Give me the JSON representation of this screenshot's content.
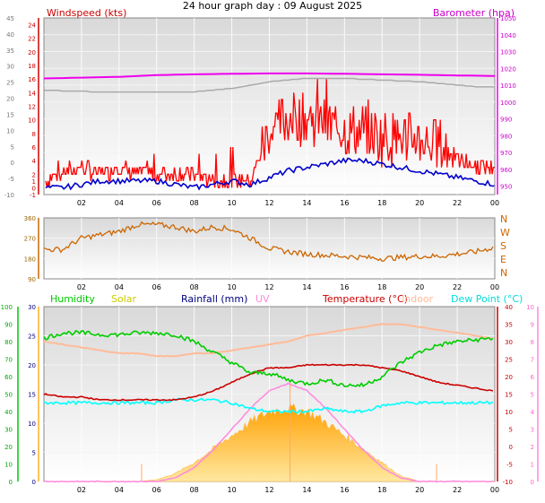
{
  "title": "24 hour graph day : 09 August 2025",
  "colors": {
    "windspeed": "#ff0000",
    "wind_avg": "#0000cc",
    "barometer": "#ee00ee",
    "bar_grey": "#aaaaaa",
    "direction": "#cc6600",
    "humidity": "#00cc00",
    "solar": "#ffb020",
    "rainfall": "#000080",
    "uv": "#ff88dd",
    "temperature": "#cc0000",
    "indoor": "#ffbb99",
    "dewpoint": "#00ffff",
    "plot_bg_top": "#e8e8e8",
    "plot_bg_bottom": "#ffffff"
  },
  "chart_data": [
    {
      "type": "line",
      "panel": "wind_barometer",
      "x_ticks": [
        "02",
        "04",
        "06",
        "08",
        "10",
        "12",
        "14",
        "16",
        "18",
        "20",
        "22",
        "00"
      ],
      "left_outer_axis": {
        "ticks": [
          "-10",
          "-5",
          "0",
          "5",
          "10",
          "15",
          "20",
          "25",
          "30",
          "35",
          "40",
          "45"
        ]
      },
      "left_axis": {
        "label": "Windspeed (kts)",
        "ticks": [
          "-1",
          "0",
          "1",
          "2",
          "4",
          "6",
          "8",
          "10",
          "12",
          "14",
          "16",
          "18",
          "20",
          "22",
          "24"
        ],
        "range": [
          -1,
          25
        ]
      },
      "right_axis": {
        "label": "Barometer (hpa)",
        "ticks": [
          "950",
          "960",
          "970",
          "980",
          "990",
          "1000",
          "1010",
          "1020",
          "1030",
          "1040",
          "1050"
        ],
        "range": [
          945,
          1050
        ]
      },
      "series": [
        {
          "name": "Windspeed (kts)",
          "key": "gust",
          "x": [
            0,
            1,
            2,
            3,
            4,
            5,
            6,
            7,
            8,
            9,
            10,
            11,
            12,
            13,
            14,
            15,
            16,
            17,
            18,
            19,
            20,
            21,
            22,
            23,
            24
          ],
          "y": [
            1,
            2,
            3,
            2,
            3,
            2,
            2,
            2,
            2,
            1,
            1,
            1,
            8,
            10,
            10,
            9,
            8,
            8,
            7,
            7,
            7,
            6,
            4,
            3,
            3
          ]
        },
        {
          "name": "avg",
          "key": "avg",
          "x": [
            0,
            1,
            2,
            3,
            4,
            5,
            6,
            7,
            8,
            9,
            10,
            11,
            12,
            13,
            14,
            15,
            16,
            17,
            18,
            19,
            20,
            21,
            22,
            23,
            24
          ],
          "y": [
            0,
            0,
            0.5,
            1,
            1,
            1,
            1,
            0.5,
            0,
            0.5,
            1,
            0.5,
            1.5,
            2.5,
            3,
            3.5,
            4,
            4,
            3.5,
            3,
            2.5,
            2,
            1.5,
            1,
            0.5
          ]
        },
        {
          "name": "Barometer (hpa)",
          "key": "baro",
          "x": [
            0,
            2,
            4,
            6,
            8,
            10,
            12,
            14,
            16,
            18,
            20,
            22,
            24
          ],
          "y": [
            1014,
            1014.5,
            1015,
            1016,
            1016.5,
            1016.8,
            1017,
            1017,
            1016.8,
            1016.5,
            1016.2,
            1015.8,
            1015.5
          ]
        },
        {
          "name": "pressure trend",
          "key": "baro_grey",
          "x": [
            0,
            3,
            6,
            8,
            9,
            10,
            11,
            12,
            13,
            14,
            16,
            18,
            20,
            21,
            22,
            23,
            24
          ],
          "y": [
            1007,
            1006,
            1006,
            1006,
            1007,
            1008,
            1010,
            1012,
            1013,
            1014,
            1014,
            1013,
            1012,
            1011,
            1010,
            1009,
            1009
          ]
        }
      ]
    },
    {
      "type": "line",
      "panel": "wind_direction",
      "x_ticks": [
        "02",
        "04",
        "06",
        "08",
        "10",
        "12",
        "14",
        "16",
        "18",
        "20",
        "22",
        "00"
      ],
      "left_axis": {
        "ticks": [
          "90",
          "180",
          "270",
          "360"
        ],
        "range": [
          90,
          360
        ]
      },
      "right_axis": {
        "ticks": [
          "N",
          "W",
          "S",
          "E",
          "N"
        ]
      },
      "series": [
        {
          "name": "Direction",
          "x": [
            0,
            1,
            2,
            3,
            4,
            5,
            6,
            7,
            8,
            9,
            10,
            11,
            12,
            13,
            14,
            15,
            16,
            17,
            18,
            19,
            20,
            21,
            22,
            23,
            24
          ],
          "y": [
            220,
            220,
            270,
            285,
            300,
            330,
            330,
            320,
            300,
            320,
            310,
            270,
            225,
            210,
            200,
            195,
            190,
            185,
            180,
            185,
            190,
            190,
            200,
            210,
            230
          ]
        }
      ]
    },
    {
      "type": "line",
      "panel": "weather",
      "x_ticks": [
        "02",
        "04",
        "06",
        "08",
        "10",
        "12",
        "14",
        "16",
        "18",
        "20",
        "22",
        "00"
      ],
      "legend": [
        "Humidity",
        "Solar",
        "Rainfall (mm)",
        "UV",
        "Temperature (°C)",
        "Indoor",
        "Dew Point (°C)"
      ],
      "humidity_axis": {
        "ticks": [
          "0",
          "10",
          "20",
          "30",
          "40",
          "50",
          "60",
          "70",
          "80",
          "90",
          "100"
        ],
        "range": [
          0,
          100
        ]
      },
      "left_axis": {
        "ticks": [
          "0",
          "5",
          "10",
          "15",
          "20",
          "25",
          "30"
        ],
        "range": [
          0,
          30
        ]
      },
      "right_axis": {
        "ticks": [
          "-10",
          "-5",
          "0",
          "5",
          "10",
          "15",
          "20",
          "25",
          "30",
          "35",
          "40"
        ],
        "range": [
          -10,
          40
        ]
      },
      "uv_axis": {
        "ticks": [
          "0",
          "1",
          "2",
          "3",
          "4",
          "5",
          "6",
          "7",
          "8",
          "9",
          "10"
        ],
        "range": [
          0,
          10
        ]
      },
      "series": [
        {
          "name": "Humidity",
          "x": [
            0,
            1,
            2,
            3,
            4,
            5,
            6,
            7,
            8,
            9,
            10,
            11,
            12,
            13,
            14,
            15,
            16,
            17,
            18,
            19,
            20,
            21,
            22,
            23,
            24
          ],
          "y": [
            82,
            85,
            85,
            84,
            84,
            85,
            85,
            84,
            80,
            74,
            68,
            62,
            62,
            58,
            56,
            58,
            55,
            55,
            60,
            68,
            74,
            78,
            80,
            81,
            82
          ]
        },
        {
          "name": "Temperature (°C)",
          "x": [
            0,
            1,
            2,
            3,
            4,
            5,
            6,
            7,
            8,
            9,
            10,
            11,
            12,
            13,
            14,
            15,
            16,
            17,
            18,
            19,
            20,
            21,
            22,
            23,
            24
          ],
          "y": [
            15,
            14.5,
            14.5,
            14,
            14,
            14,
            14,
            14,
            14.5,
            15.5,
            17,
            18.5,
            19.5,
            19.5,
            20,
            20,
            20,
            20,
            19.5,
            19,
            18,
            17,
            16.5,
            16,
            15.5
          ]
        },
        {
          "name": "Indoor",
          "x": [
            0,
            1,
            2,
            3,
            4,
            5,
            6,
            7,
            8,
            9,
            10,
            11,
            12,
            13,
            14,
            15,
            16,
            17,
            18,
            19,
            20,
            21,
            22,
            23,
            24
          ],
          "y": [
            24,
            23.5,
            23,
            22.5,
            22,
            22,
            21.5,
            21.5,
            22,
            22,
            22.5,
            23,
            23.5,
            24,
            25,
            25.5,
            26,
            26.5,
            27,
            27,
            26.5,
            26,
            25.5,
            25,
            24.5
          ]
        },
        {
          "name": "Dew Point (°C)",
          "x": [
            0,
            1,
            2,
            3,
            4,
            5,
            6,
            7,
            8,
            9,
            10,
            11,
            12,
            13,
            14,
            15,
            16,
            17,
            18,
            19,
            20,
            21,
            22,
            23,
            24
          ],
          "y": [
            13.5,
            13.5,
            13.5,
            13.5,
            13.5,
            13.5,
            13.5,
            14,
            14,
            14,
            13.5,
            12.5,
            12,
            12,
            12,
            12.5,
            12,
            12,
            13,
            13.5,
            13.5,
            13.5,
            13.5,
            13.5,
            13.5
          ]
        },
        {
          "name": "UV",
          "x": [
            0,
            6,
            7,
            8,
            9,
            10,
            11,
            12,
            13,
            14,
            15,
            16,
            17,
            18,
            19,
            20,
            24
          ],
          "y": [
            0,
            0,
            0.2,
            0.8,
            1.8,
            3,
            4.2,
            5.2,
            5.6,
            5.2,
            4.2,
            3,
            1.8,
            0.8,
            0.2,
            0,
            0
          ]
        },
        {
          "name": "Solar",
          "x": [
            0,
            5,
            6,
            7,
            8,
            9,
            10,
            11,
            12,
            13,
            14,
            15,
            16,
            17,
            18,
            19,
            20,
            24
          ],
          "y": [
            0,
            0,
            0.3,
            1.5,
            3.5,
            6,
            8.5,
            11,
            13,
            13.5,
            13,
            11,
            8.5,
            6,
            3.5,
            1,
            0,
            0
          ]
        }
      ]
    }
  ]
}
